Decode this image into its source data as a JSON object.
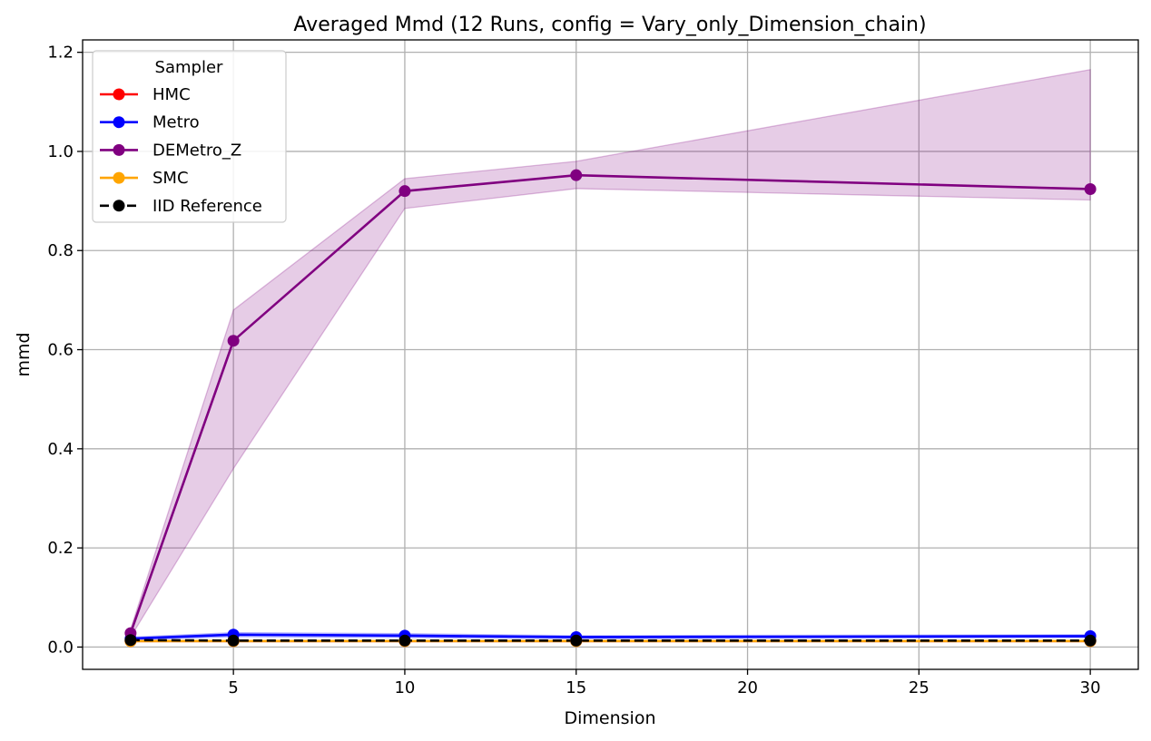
{
  "chart_data": {
    "type": "line",
    "title": "Averaged Mmd (12 Runs, config = Vary_only_Dimension_chain)",
    "xlabel": "Dimension",
    "ylabel": "mmd",
    "xlim": [
      0.6,
      31.4
    ],
    "ylim": [
      -0.045,
      1.225
    ],
    "xticks": [
      5,
      10,
      15,
      20,
      25,
      30
    ],
    "yticks": [
      0.0,
      0.2,
      0.4,
      0.6,
      0.8,
      1.0,
      1.2
    ],
    "xtick_labels": [
      "5",
      "10",
      "15",
      "20",
      "25",
      "30"
    ],
    "ytick_labels": [
      "0.0",
      "0.2",
      "0.4",
      "0.6",
      "0.8",
      "1.0",
      "1.2"
    ],
    "grid": true,
    "legend": {
      "title": "Sampler",
      "placement": "upper-left"
    },
    "x": [
      2,
      5,
      10,
      15,
      30
    ],
    "series": [
      {
        "name": "HMC",
        "color": "#ff0000",
        "linestyle": "solid",
        "values": [
          0.012,
          0.012,
          0.012,
          0.012,
          0.012
        ]
      },
      {
        "name": "Metro",
        "color": "#0000ff",
        "linestyle": "solid",
        "values": [
          0.017,
          0.025,
          0.023,
          0.02,
          0.022
        ],
        "band_lower": [
          0.014,
          0.021,
          0.019,
          0.017,
          0.019
        ],
        "band_upper": [
          0.02,
          0.029,
          0.027,
          0.023,
          0.025
        ]
      },
      {
        "name": "DEMetro_Z",
        "color": "#800080",
        "linestyle": "solid",
        "values": [
          0.028,
          0.618,
          0.92,
          0.952,
          0.924
        ],
        "band_lower": [
          0.02,
          0.36,
          0.885,
          0.925,
          0.902
        ],
        "band_upper": [
          0.036,
          0.68,
          0.945,
          0.98,
          1.165
        ]
      },
      {
        "name": "SMC",
        "color": "#ffa500",
        "linestyle": "solid",
        "values": [
          0.012,
          0.012,
          0.012,
          0.012,
          0.012
        ]
      },
      {
        "name": "IID Reference",
        "color": "#000000",
        "linestyle": "dashed",
        "values": [
          0.014,
          0.013,
          0.013,
          0.013,
          0.013
        ]
      }
    ]
  }
}
